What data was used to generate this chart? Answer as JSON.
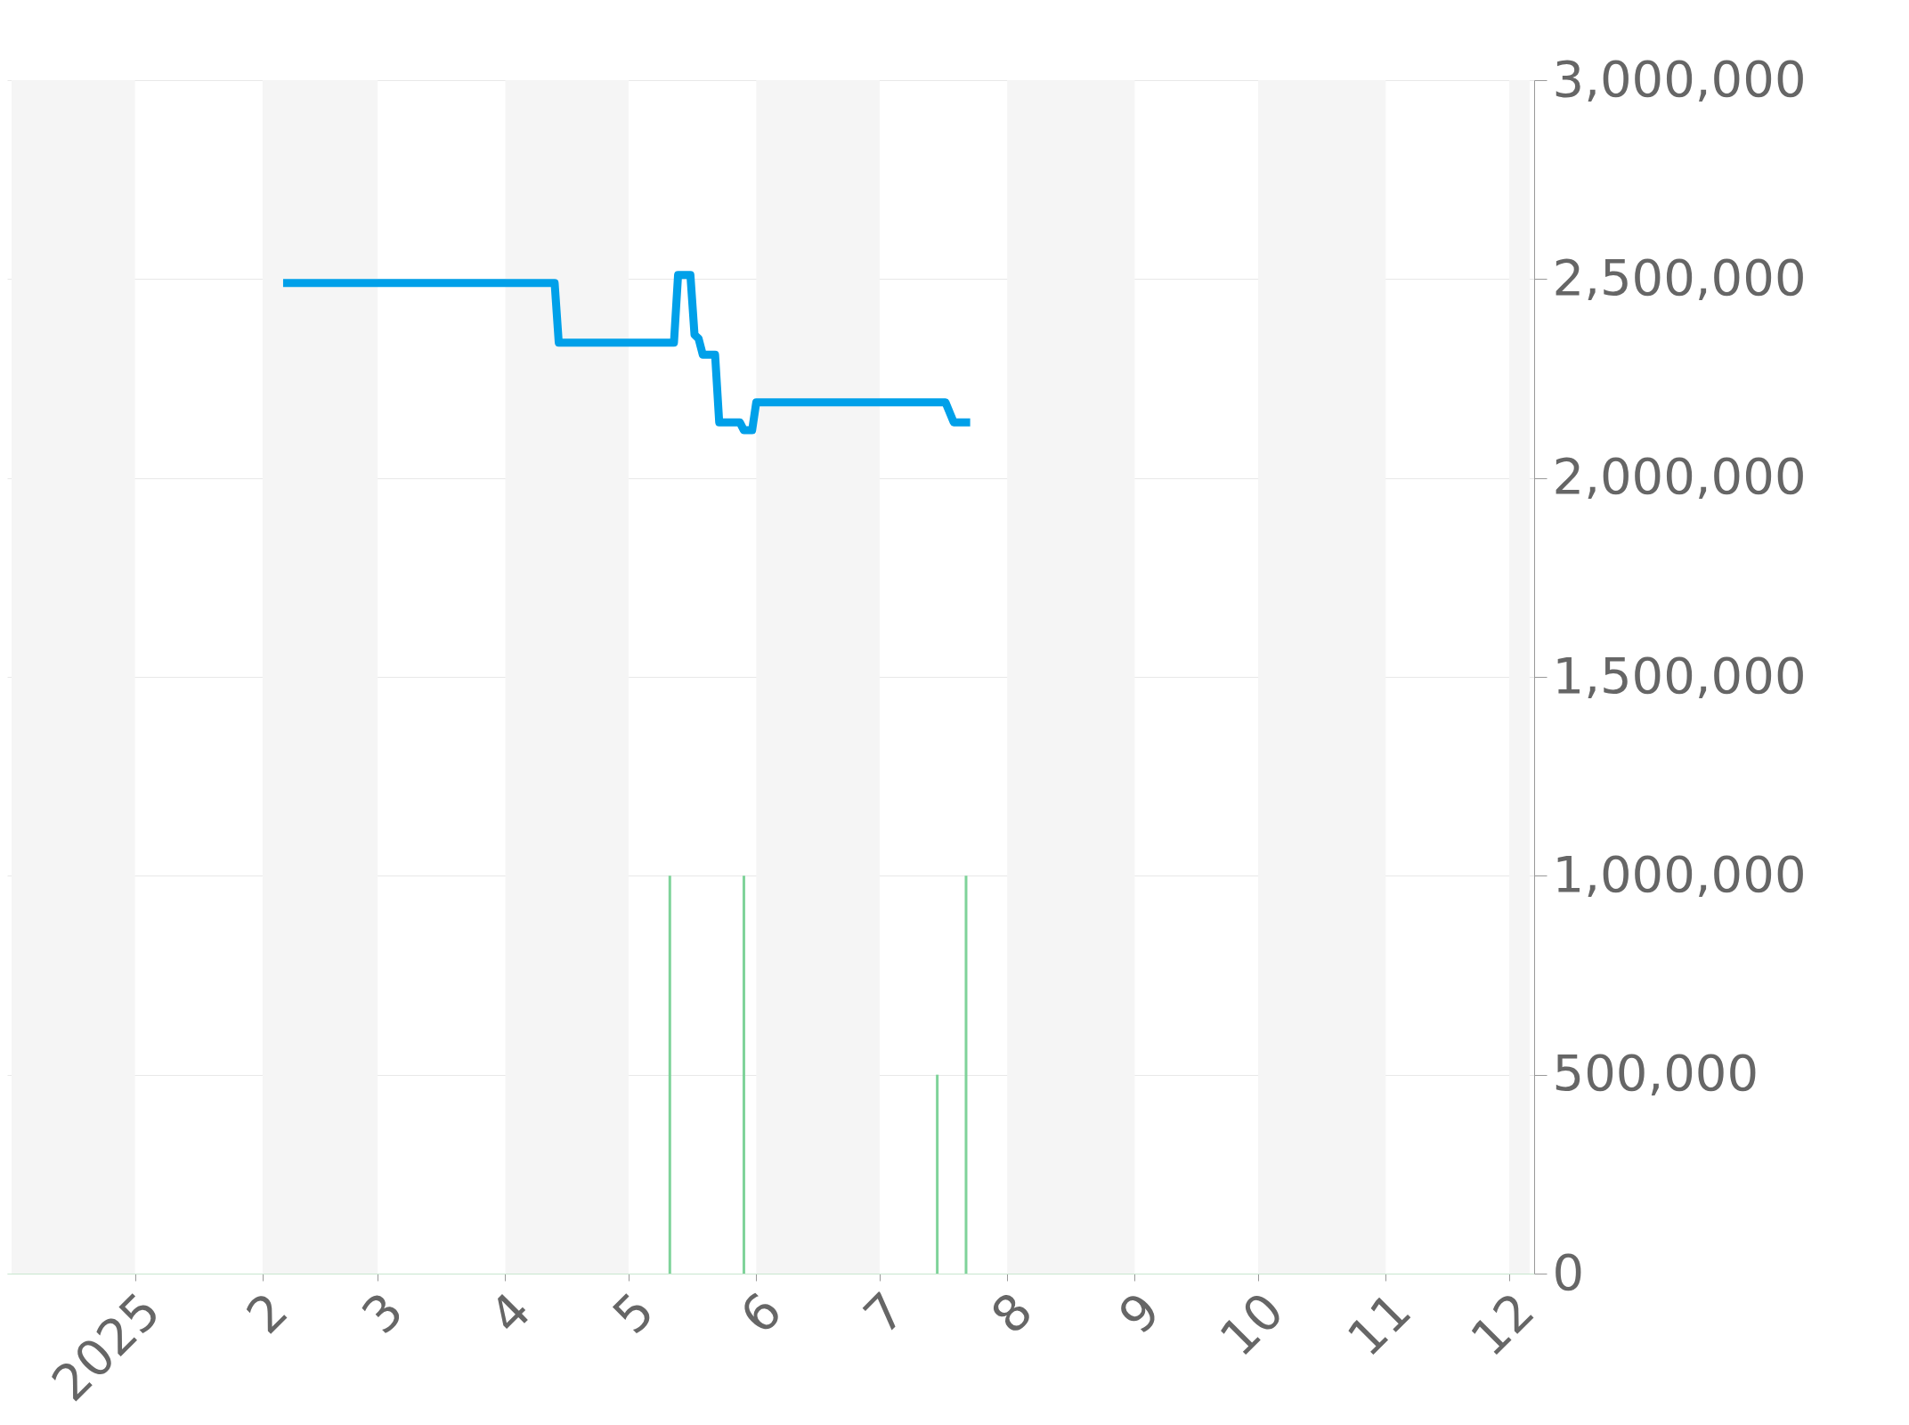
{
  "chart_data": {
    "type": "line",
    "xlim": [
      "2024-12-02",
      "2025-12-06"
    ],
    "xticks": [
      {
        "value": "2025-01-01",
        "label": "2025"
      },
      {
        "value": "2025-02-01",
        "label": "2"
      },
      {
        "value": "2025-03-01",
        "label": "3"
      },
      {
        "value": "2025-04-01",
        "label": "4"
      },
      {
        "value": "2025-05-01",
        "label": "5"
      },
      {
        "value": "2025-06-01",
        "label": "6"
      },
      {
        "value": "2025-07-01",
        "label": "7"
      },
      {
        "value": "2025-08-01",
        "label": "8"
      },
      {
        "value": "2025-09-01",
        "label": "9"
      },
      {
        "value": "2025-10-01",
        "label": "10"
      },
      {
        "value": "2025-11-01",
        "label": "11"
      },
      {
        "value": "2025-12-01",
        "label": "12"
      }
    ],
    "ylim": [
      0,
      3000000
    ],
    "yticks": [
      0,
      {
        "value": 500000,
        "label": "500,000"
      },
      {
        "value": 1000000,
        "label": "1,000,000"
      },
      {
        "value": 1500000,
        "label": "1,500,000"
      },
      {
        "value": 2000000,
        "label": "2,000,000"
      },
      {
        "value": 2500000,
        "label": "2,500,000"
      },
      {
        "value": 3000000,
        "label": "3,000,000"
      }
    ],
    "grid": "y",
    "line_style": "solid",
    "bands": [
      {
        "axis": "x",
        "from": "2024-12-02",
        "to": "2025-01-01",
        "color": "#f5f5f5"
      },
      {
        "axis": "x",
        "from": "2025-02-01",
        "to": "2025-03-01",
        "color": "#f5f5f5"
      },
      {
        "axis": "x",
        "from": "2025-04-01",
        "to": "2025-05-01",
        "color": "#f5f5f5"
      },
      {
        "axis": "x",
        "from": "2025-06-01",
        "to": "2025-07-01",
        "color": "#f5f5f5"
      },
      {
        "axis": "x",
        "from": "2025-08-01",
        "to": "2025-09-01",
        "color": "#f5f5f5"
      },
      {
        "axis": "x",
        "from": "2025-10-01",
        "to": "2025-11-01",
        "color": "#f5f5f5"
      },
      {
        "axis": "x",
        "from": "2025-12-01",
        "to": "2025-12-06",
        "color": "#f5f5f5"
      }
    ],
    "series": [
      {
        "type": "bar",
        "color": "#7fd39a",
        "x": [
          "2025-05-11",
          "2025-05-29",
          "2025-07-15",
          "2025-07-22"
        ],
        "values": [
          1000000,
          1000000,
          500000,
          1000000
        ]
      },
      {
        "color": "#00a0e9",
        "x": [
          "2025-02-06",
          "2025-04-13",
          "2025-04-14",
          "2025-05-12",
          "2025-05-13",
          "2025-05-16",
          "2025-05-17",
          "2025-05-18",
          "2025-05-19",
          "2025-05-22",
          "2025-05-23",
          "2025-05-28",
          "2025-05-29",
          "2025-05-31",
          "2025-06-01",
          "2025-07-17",
          "2025-07-19",
          "2025-07-23"
        ],
        "values": [
          2490000,
          2490000,
          2340000,
          2340000,
          2510000,
          2510000,
          2360000,
          2350000,
          2310000,
          2310000,
          2140000,
          2140000,
          2120000,
          2120000,
          2190000,
          2190000,
          2140000,
          2140000
        ]
      }
    ]
  }
}
